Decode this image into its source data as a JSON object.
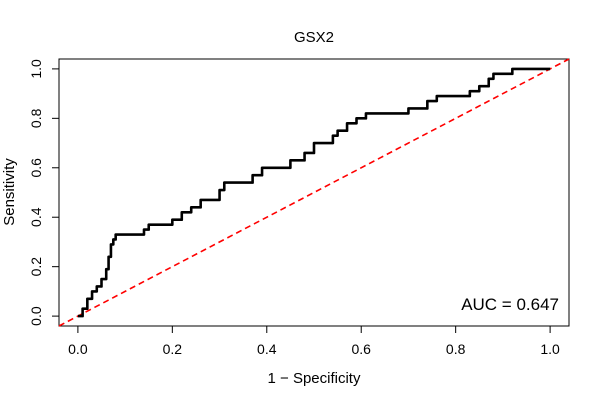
{
  "chart_data": {
    "type": "line",
    "title": "GSX2",
    "xlabel": "1 − Specificity",
    "ylabel": "Sensitivity",
    "xlim": [
      -0.04,
      1.04
    ],
    "ylim": [
      -0.04,
      1.04
    ],
    "x_ticks": [
      {
        "value": 0.0,
        "label": "0.0"
      },
      {
        "value": 0.2,
        "label": "0.2"
      },
      {
        "value": 0.4,
        "label": "0.4"
      },
      {
        "value": 0.6,
        "label": "0.6"
      },
      {
        "value": 0.8,
        "label": "0.8"
      },
      {
        "value": 1.0,
        "label": "1.0"
      }
    ],
    "y_ticks": [
      {
        "value": 0.0,
        "label": "0.0"
      },
      {
        "value": 0.2,
        "label": "0.2"
      },
      {
        "value": 0.4,
        "label": "0.4"
      },
      {
        "value": 0.6,
        "label": "0.6"
      },
      {
        "value": 0.8,
        "label": "0.8"
      },
      {
        "value": 1.0,
        "label": "1.0"
      }
    ],
    "grid": false,
    "annotation": "AUC = 0.647",
    "series": [
      {
        "color": "#000000",
        "style": "solid",
        "x": [
          0,
          0.01,
          0.01,
          0.02,
          0.02,
          0.03,
          0.03,
          0.04,
          0.04,
          0.05,
          0.05,
          0.06,
          0.06,
          0.065,
          0.065,
          0.07,
          0.07,
          0.075,
          0.075,
          0.08,
          0.08,
          0.14,
          0.14,
          0.15,
          0.15,
          0.2,
          0.2,
          0.22,
          0.22,
          0.24,
          0.24,
          0.26,
          0.26,
          0.3,
          0.3,
          0.31,
          0.31,
          0.37,
          0.37,
          0.39,
          0.39,
          0.45,
          0.45,
          0.48,
          0.48,
          0.5,
          0.5,
          0.54,
          0.54,
          0.55,
          0.55,
          0.57,
          0.57,
          0.59,
          0.59,
          0.61,
          0.61,
          0.7,
          0.7,
          0.74,
          0.74,
          0.76,
          0.76,
          0.83,
          0.83,
          0.85,
          0.85,
          0.87,
          0.87,
          0.88,
          0.88,
          0.92,
          0.92,
          1.0
        ],
        "y": [
          0,
          0,
          0.03,
          0.03,
          0.07,
          0.07,
          0.1,
          0.1,
          0.12,
          0.12,
          0.15,
          0.15,
          0.19,
          0.19,
          0.24,
          0.24,
          0.29,
          0.29,
          0.31,
          0.31,
          0.33,
          0.33,
          0.35,
          0.35,
          0.37,
          0.37,
          0.39,
          0.39,
          0.42,
          0.42,
          0.44,
          0.44,
          0.47,
          0.47,
          0.51,
          0.51,
          0.54,
          0.54,
          0.57,
          0.57,
          0.6,
          0.6,
          0.63,
          0.63,
          0.66,
          0.66,
          0.7,
          0.7,
          0.73,
          0.73,
          0.75,
          0.75,
          0.78,
          0.78,
          0.8,
          0.8,
          0.82,
          0.82,
          0.84,
          0.84,
          0.87,
          0.87,
          0.89,
          0.89,
          0.91,
          0.91,
          0.93,
          0.93,
          0.96,
          0.96,
          0.98,
          0.98,
          1.0,
          1.0
        ]
      },
      {
        "color": "#ff0000",
        "style": "dashed",
        "x": [
          -0.04,
          1.04
        ],
        "y": [
          -0.04,
          1.04
        ]
      }
    ]
  }
}
